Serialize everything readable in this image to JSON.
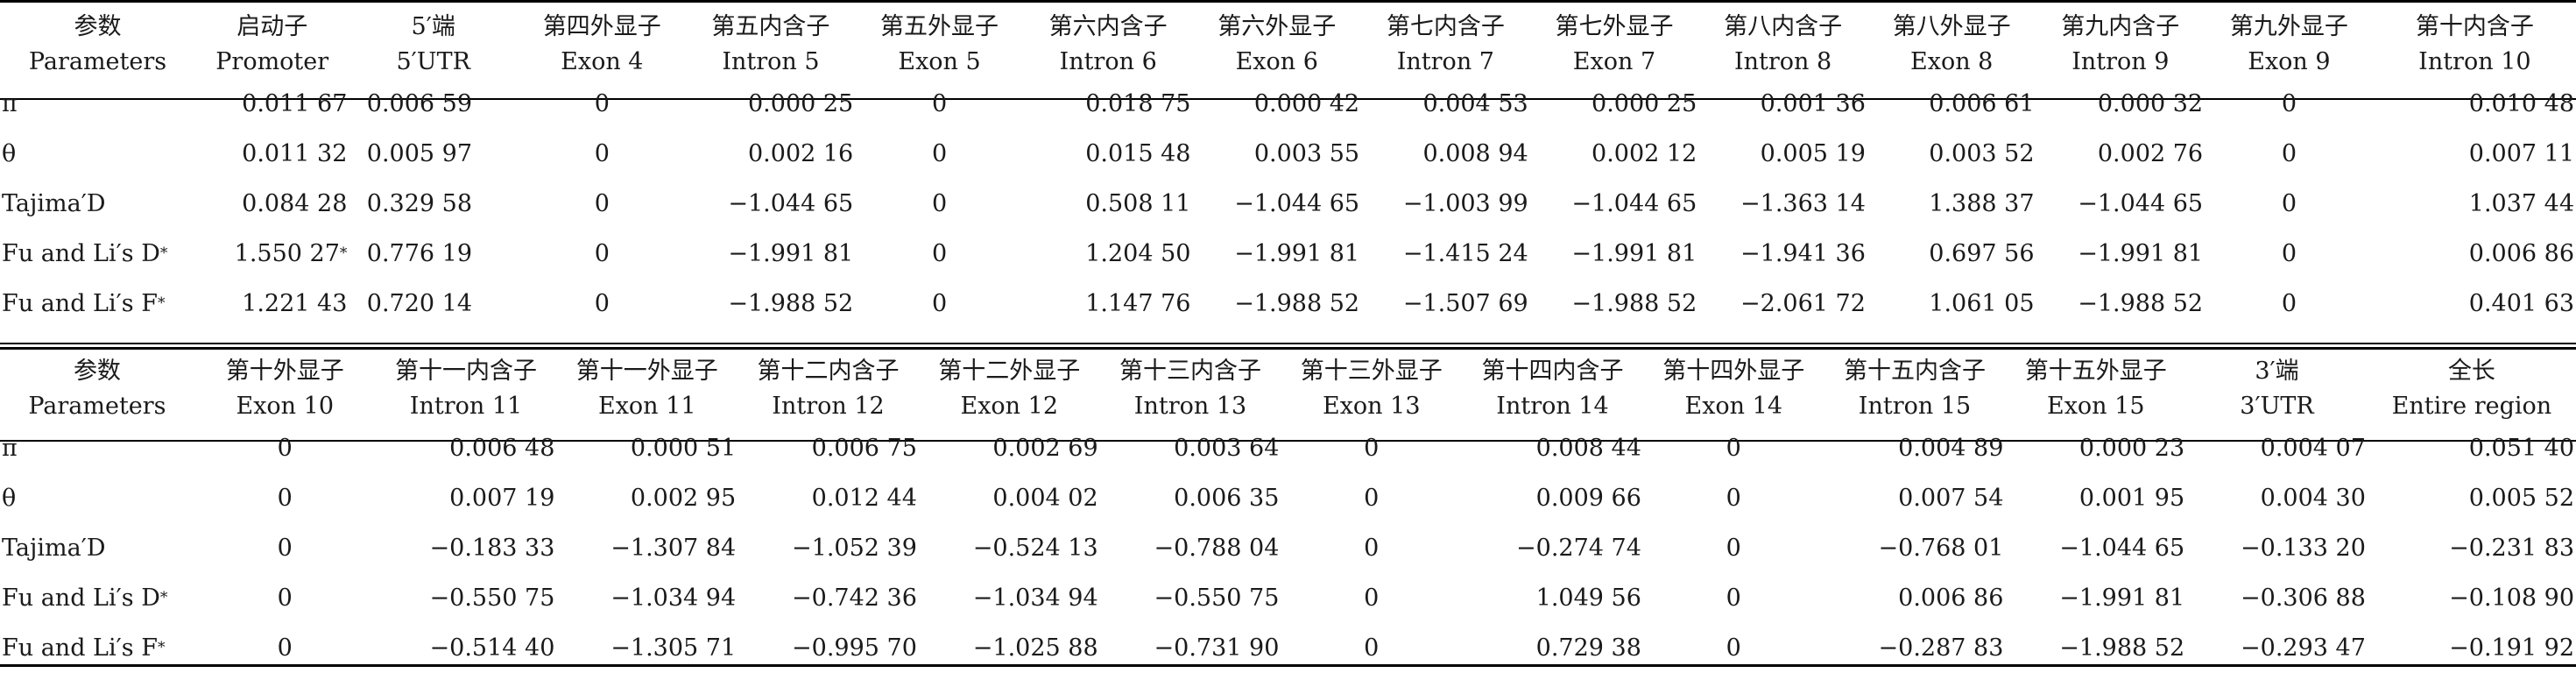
{
  "table1": {
    "header_cn": [
      "参数",
      "启动子",
      "5′端",
      "第四外显子",
      "第五内含子",
      "第五外显子",
      "第六内含子",
      "第六外显子",
      "第七内含子",
      "第七外显子",
      "第八内含子",
      "第八外显子",
      "第九内含子",
      "第九外显子",
      "第十内含子"
    ],
    "header_en": [
      "Parameters",
      "Promoter",
      "5′UTR",
      "Exon 4",
      "Intron 5",
      "Exon 5",
      "Intron 6",
      "Exon 6",
      "Intron 7",
      "Exon 7",
      "Intron 8",
      "Exon 8",
      "Intron 9",
      "Exon 9",
      "Intron 10"
    ],
    "rows": [
      {
        "label": "π",
        "label_sup": "",
        "values": [
          {
            "v": "0.011 67",
            "s": ""
          },
          {
            "v": "0.006 59",
            "s": ""
          },
          {
            "v": "0",
            "s": ""
          },
          {
            "v": "0.000 25",
            "s": ""
          },
          {
            "v": "0",
            "s": ""
          },
          {
            "v": "0.018 75",
            "s": ""
          },
          {
            "v": "0.000 42",
            "s": ""
          },
          {
            "v": "0.004 53",
            "s": ""
          },
          {
            "v": "0.000 25",
            "s": ""
          },
          {
            "v": "0.001 36",
            "s": ""
          },
          {
            "v": "0.006 61",
            "s": ""
          },
          {
            "v": "0.000 32",
            "s": ""
          },
          {
            "v": "0",
            "s": ""
          },
          {
            "v": "0.010 48",
            "s": ""
          }
        ]
      },
      {
        "label": "θ",
        "label_sup": "",
        "values": [
          {
            "v": "0.011 32",
            "s": ""
          },
          {
            "v": "0.005 97",
            "s": ""
          },
          {
            "v": "0",
            "s": ""
          },
          {
            "v": "0.002 16",
            "s": ""
          },
          {
            "v": "0",
            "s": ""
          },
          {
            "v": "0.015 48",
            "s": ""
          },
          {
            "v": "0.003 55",
            "s": ""
          },
          {
            "v": "0.008 94",
            "s": ""
          },
          {
            "v": "0.002 12",
            "s": ""
          },
          {
            "v": "0.005 19",
            "s": ""
          },
          {
            "v": "0.003 52",
            "s": ""
          },
          {
            "v": "0.002 76",
            "s": ""
          },
          {
            "v": "0",
            "s": ""
          },
          {
            "v": "0.007 11",
            "s": ""
          }
        ]
      },
      {
        "label": "Tajima′D",
        "label_sup": "",
        "values": [
          {
            "v": "0.084 28",
            "s": ""
          },
          {
            "v": "0.329 58",
            "s": ""
          },
          {
            "v": "0",
            "s": ""
          },
          {
            "v": "−1.044 65",
            "s": ""
          },
          {
            "v": "0",
            "s": ""
          },
          {
            "v": "0.508 11",
            "s": ""
          },
          {
            "v": "−1.044 65",
            "s": ""
          },
          {
            "v": "−1.003 99",
            "s": ""
          },
          {
            "v": "−1.044 65",
            "s": ""
          },
          {
            "v": "−1.363 14",
            "s": ""
          },
          {
            "v": "1.388 37",
            "s": ""
          },
          {
            "v": "−1.044 65",
            "s": ""
          },
          {
            "v": "0",
            "s": ""
          },
          {
            "v": "1.037 44",
            "s": ""
          }
        ]
      },
      {
        "label": "Fu and Li′s D",
        "label_sup": "*",
        "values": [
          {
            "v": "1.550 27",
            "s": "*"
          },
          {
            "v": "0.776 19",
            "s": ""
          },
          {
            "v": "0",
            "s": ""
          },
          {
            "v": "−1.991 81",
            "s": ""
          },
          {
            "v": "0",
            "s": ""
          },
          {
            "v": "1.204 50",
            "s": ""
          },
          {
            "v": "−1.991 81",
            "s": ""
          },
          {
            "v": "−1.415 24",
            "s": ""
          },
          {
            "v": "−1.991 81",
            "s": ""
          },
          {
            "v": "−1.941 36",
            "s": ""
          },
          {
            "v": "0.697 56",
            "s": ""
          },
          {
            "v": "−1.991 81",
            "s": ""
          },
          {
            "v": "0",
            "s": ""
          },
          {
            "v": "0.006 86",
            "s": ""
          }
        ]
      },
      {
        "label": "Fu and Li′s F",
        "label_sup": "*",
        "values": [
          {
            "v": "1.221 43",
            "s": ""
          },
          {
            "v": "0.720 14",
            "s": ""
          },
          {
            "v": "0",
            "s": ""
          },
          {
            "v": "−1.988 52",
            "s": ""
          },
          {
            "v": "0",
            "s": ""
          },
          {
            "v": "1.147 76",
            "s": ""
          },
          {
            "v": "−1.988 52",
            "s": ""
          },
          {
            "v": "−1.507 69",
            "s": ""
          },
          {
            "v": "−1.988 52",
            "s": ""
          },
          {
            "v": "−2.061 72",
            "s": ""
          },
          {
            "v": "1.061 05",
            "s": ""
          },
          {
            "v": "−1.988 52",
            "s": ""
          },
          {
            "v": "0",
            "s": ""
          },
          {
            "v": "0.401 63",
            "s": ""
          }
        ]
      }
    ]
  },
  "table2": {
    "header_cn": [
      "参数",
      "第十外显子",
      "第十一内含子",
      "第十一外显子",
      "第十二内含子",
      "第十二外显子",
      "第十三内含子",
      "第十三外显子",
      "第十四内含子",
      "第十四外显子",
      "第十五内含子",
      "第十五外显子",
      "3′端",
      "全长"
    ],
    "header_en": [
      "Parameters",
      "Exon 10",
      "Intron 11",
      "Exon 11",
      "Intron 12",
      "Exon 12",
      "Intron 13",
      "Exon 13",
      "Intron 14",
      "Exon 14",
      "Intron 15",
      "Exon 15",
      "3′UTR",
      "Entire region"
    ],
    "rows": [
      {
        "label": "π",
        "label_sup": "",
        "values": [
          {
            "v": "0",
            "s": ""
          },
          {
            "v": "0.006 48",
            "s": ""
          },
          {
            "v": "0.000 51",
            "s": ""
          },
          {
            "v": "0.006 75",
            "s": ""
          },
          {
            "v": "0.002 69",
            "s": ""
          },
          {
            "v": "0.003 64",
            "s": ""
          },
          {
            "v": "0",
            "s": ""
          },
          {
            "v": "0.008 44",
            "s": ""
          },
          {
            "v": "0",
            "s": ""
          },
          {
            "v": "0.004 89",
            "s": ""
          },
          {
            "v": "0.000 23",
            "s": ""
          },
          {
            "v": "0.004 07",
            "s": ""
          },
          {
            "v": "0.051 40",
            "s": ""
          }
        ]
      },
      {
        "label": "θ",
        "label_sup": "",
        "values": [
          {
            "v": "0",
            "s": ""
          },
          {
            "v": "0.007 19",
            "s": ""
          },
          {
            "v": "0.002 95",
            "s": ""
          },
          {
            "v": "0.012 44",
            "s": ""
          },
          {
            "v": "0.004 02",
            "s": ""
          },
          {
            "v": "0.006 35",
            "s": ""
          },
          {
            "v": "0",
            "s": ""
          },
          {
            "v": "0.009 66",
            "s": ""
          },
          {
            "v": "0",
            "s": ""
          },
          {
            "v": "0.007 54",
            "s": ""
          },
          {
            "v": "0.001 95",
            "s": ""
          },
          {
            "v": "0.004 30",
            "s": ""
          },
          {
            "v": "0.005 52",
            "s": ""
          }
        ]
      },
      {
        "label": "Tajima′D",
        "label_sup": "",
        "values": [
          {
            "v": "0",
            "s": ""
          },
          {
            "v": "−0.183 33",
            "s": ""
          },
          {
            "v": "−1.307 84",
            "s": ""
          },
          {
            "v": "−1.052 39",
            "s": ""
          },
          {
            "v": "−0.524 13",
            "s": ""
          },
          {
            "v": "−0.788 04",
            "s": ""
          },
          {
            "v": "0",
            "s": ""
          },
          {
            "v": "−0.274 74",
            "s": ""
          },
          {
            "v": "0",
            "s": ""
          },
          {
            "v": "−0.768 01",
            "s": ""
          },
          {
            "v": "−1.044 65",
            "s": ""
          },
          {
            "v": "−0.133 20",
            "s": ""
          },
          {
            "v": "−0.231 83",
            "s": ""
          }
        ]
      },
      {
        "label": "Fu and Li′s D",
        "label_sup": "*",
        "values": [
          {
            "v": "0",
            "s": ""
          },
          {
            "v": "−0.550 75",
            "s": ""
          },
          {
            "v": "−1.034 94",
            "s": ""
          },
          {
            "v": "−0.742 36",
            "s": ""
          },
          {
            "v": "−1.034 94",
            "s": ""
          },
          {
            "v": "−0.550 75",
            "s": ""
          },
          {
            "v": "0",
            "s": ""
          },
          {
            "v": "1.049 56",
            "s": ""
          },
          {
            "v": "0",
            "s": ""
          },
          {
            "v": "0.006 86",
            "s": ""
          },
          {
            "v": "−1.991 81",
            "s": ""
          },
          {
            "v": "−0.306 88",
            "s": ""
          },
          {
            "v": "−0.108 90",
            "s": ""
          }
        ]
      },
      {
        "label": "Fu and Li′s F",
        "label_sup": "*",
        "values": [
          {
            "v": "0",
            "s": ""
          },
          {
            "v": "−0.514 40",
            "s": ""
          },
          {
            "v": "−1.305 71",
            "s": ""
          },
          {
            "v": "−0.995 70",
            "s": ""
          },
          {
            "v": "−1.025 88",
            "s": ""
          },
          {
            "v": "−0.731 90",
            "s": ""
          },
          {
            "v": "0",
            "s": ""
          },
          {
            "v": "0.729 38",
            "s": ""
          },
          {
            "v": "0",
            "s": ""
          },
          {
            "v": "−0.287 83",
            "s": ""
          },
          {
            "v": "−1.988 52",
            "s": ""
          },
          {
            "v": "−0.293 47",
            "s": ""
          },
          {
            "v": "−0.191 92",
            "s": ""
          }
        ]
      }
    ]
  }
}
